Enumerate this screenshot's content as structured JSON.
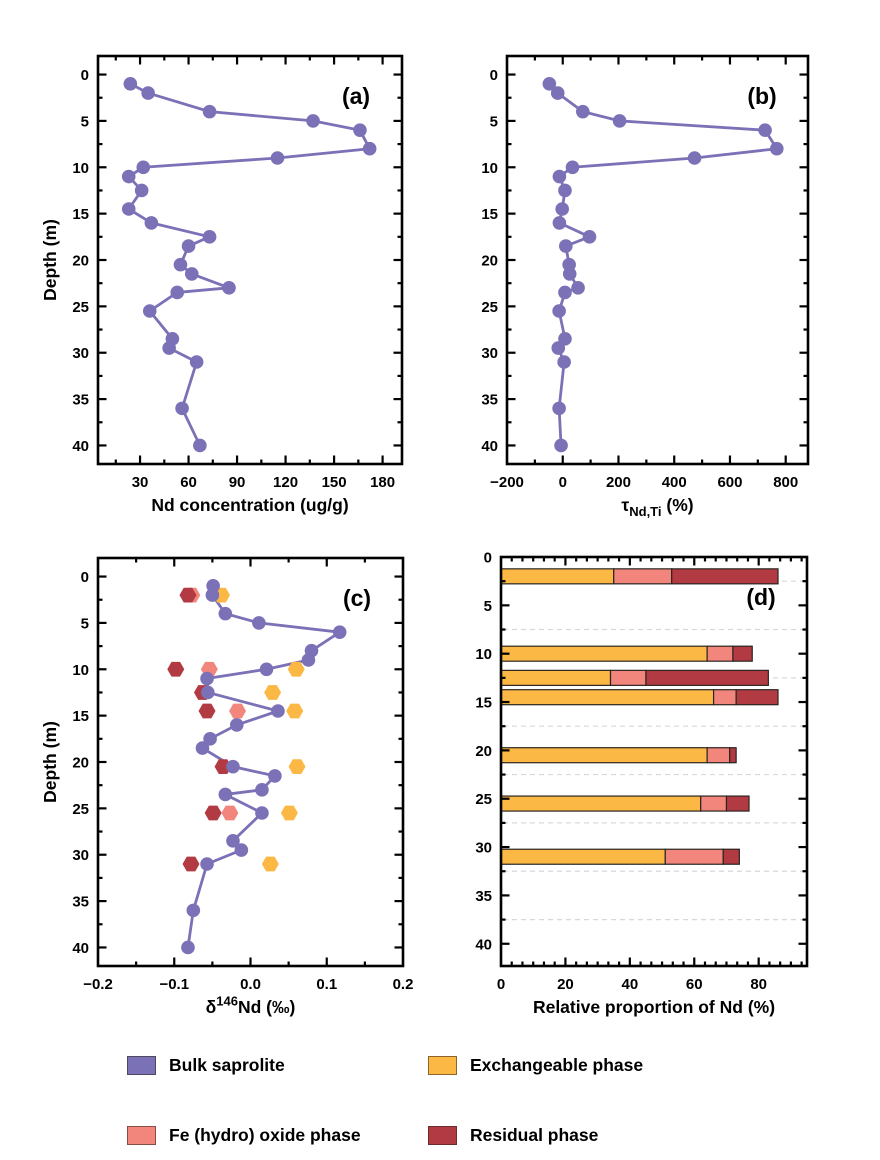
{
  "colors": {
    "bulk_saprolite": "#7B71B6",
    "fe_oxide": "#F2867C",
    "exchangeable": "#FBB845",
    "residual": "#B23B43",
    "axis": "#000000",
    "grid": "#d8d8d8",
    "bar_border": "#2a2520"
  },
  "legend": {
    "items": [
      {
        "key": "bulk_saprolite",
        "label": "Bulk saprolite"
      },
      {
        "key": "fe_oxide",
        "label": "Fe (hydro) oxide phase"
      },
      {
        "key": "exchangeable",
        "label": "Exchangeable phase"
      },
      {
        "key": "residual",
        "label": "Residual phase"
      }
    ]
  },
  "chart_data": [
    {
      "id": "a",
      "label": "(a)",
      "type": "line",
      "x_title_parts": [
        {
          "t": "Nd concentration (ug/g)"
        }
      ],
      "y_title": "Depth (m)",
      "xlim": [
        4,
        192
      ],
      "xticks": [
        30,
        60,
        90,
        120,
        150,
        180
      ],
      "xtick_labels": [
        "30",
        "60",
        "90",
        "120",
        "150",
        "180"
      ],
      "xminor_step": 15,
      "ylim": [
        -2,
        42
      ],
      "yticks": [
        0,
        5,
        10,
        15,
        20,
        25,
        30,
        35,
        40
      ],
      "yminor_step": 2.5,
      "series": [
        {
          "name": "Bulk saprolite",
          "color_key": "bulk_saprolite",
          "marker": "circle",
          "line": true,
          "depth": [
            1,
            2,
            4,
            5,
            6,
            8,
            9,
            10,
            11,
            12.5,
            14.5,
            16,
            17.5,
            18.5,
            20.5,
            21.5,
            23,
            23.5,
            25.5,
            28.5,
            29.5,
            31,
            36,
            40
          ],
          "values": [
            24,
            35,
            73,
            137,
            166,
            172,
            115,
            32,
            23,
            31,
            23,
            37,
            73,
            60,
            55,
            62,
            85,
            53,
            36,
            50,
            48,
            65,
            56,
            67
          ]
        }
      ]
    },
    {
      "id": "b",
      "label": "(b)",
      "type": "line",
      "x_title_parts": [
        {
          "t": "τ"
        },
        {
          "t": "Nd,Ti",
          "pos": "sub"
        },
        {
          "t": " (%)"
        }
      ],
      "y_title": "",
      "xlim": [
        -200,
        880
      ],
      "xticks": [
        -200,
        0,
        200,
        400,
        600,
        800
      ],
      "xtick_labels": [
        "−200",
        "0",
        "200",
        "400",
        "600",
        "800"
      ],
      "xminor_step": 100,
      "ylim": [
        -2,
        42
      ],
      "yticks": [
        0,
        5,
        10,
        15,
        20,
        25,
        30,
        35,
        40
      ],
      "yminor_step": 2.5,
      "series": [
        {
          "name": "Bulk saprolite",
          "color_key": "bulk_saprolite",
          "marker": "circle",
          "line": true,
          "depth": [
            1,
            2,
            4,
            5,
            6,
            8,
            9,
            10,
            11,
            12.5,
            14.5,
            16,
            17.5,
            18.5,
            20.5,
            21.5,
            23,
            23.5,
            25.5,
            28.5,
            29.5,
            31,
            36,
            40
          ],
          "values": [
            -48,
            -18,
            72,
            204,
            726,
            768,
            473,
            35,
            -12,
            8,
            -2,
            -12,
            96,
            11,
            23,
            25,
            55,
            8,
            -13,
            8,
            -16,
            5,
            -13,
            -6
          ]
        }
      ]
    },
    {
      "id": "c",
      "label": "(c)",
      "type": "line",
      "x_title_parts": [
        {
          "t": "δ"
        },
        {
          "t": "146",
          "pos": "sup"
        },
        {
          "t": "Nd (‰)"
        }
      ],
      "y_title": "Depth (m)",
      "xlim": [
        -0.2,
        0.2
      ],
      "xticks": [
        -0.2,
        -0.1,
        0,
        0.1,
        0.2
      ],
      "xtick_labels": [
        "−0.2",
        "−0.1",
        "0.0",
        "0.1",
        "0.2"
      ],
      "xminor_step": 0.05,
      "ylim": [
        -2,
        42
      ],
      "yticks": [
        0,
        5,
        10,
        15,
        20,
        25,
        30,
        35,
        40
      ],
      "yminor_step": 2.5,
      "series": [
        {
          "name": "Bulk saprolite",
          "color_key": "bulk_saprolite",
          "marker": "circle",
          "line": true,
          "depth": [
            1,
            2,
            4,
            5,
            6,
            8,
            9,
            10,
            11,
            12.5,
            14.5,
            16,
            17.5,
            18.5,
            20.5,
            21.5,
            23,
            23.5,
            25.5,
            28.5,
            29.5,
            31,
            36,
            40
          ],
          "values": [
            -0.049,
            -0.05,
            -0.033,
            0.011,
            0.117,
            0.08,
            0.076,
            0.021,
            -0.057,
            -0.056,
            0.036,
            -0.018,
            -0.053,
            -0.063,
            -0.023,
            0.032,
            0.015,
            -0.033,
            0.015,
            -0.023,
            -0.012,
            -0.057,
            -0.075,
            -0.082
          ]
        },
        {
          "name": "Exchangeable phase",
          "color_key": "exchangeable",
          "marker": "hexagon",
          "line": false,
          "depth": [
            2,
            10,
            12.5,
            14.5,
            20.5,
            25.5,
            31
          ],
          "values": [
            -0.038,
            0.06,
            0.029,
            0.058,
            0.061,
            0.051,
            0.026
          ]
        },
        {
          "name": "Fe (hydro) oxide phase",
          "color_key": "fe_oxide",
          "marker": "hexagon",
          "line": false,
          "depth": [
            2,
            10,
            14.5,
            25.5
          ],
          "values": [
            -0.077,
            -0.054,
            -0.017,
            -0.027
          ]
        },
        {
          "name": "Residual phase",
          "color_key": "residual",
          "marker": "hexagon",
          "line": false,
          "depth": [
            2,
            10,
            12.5,
            14.5,
            20.5,
            25.5,
            31
          ],
          "values": [
            -0.082,
            -0.098,
            -0.063,
            -0.057,
            -0.036,
            -0.049,
            -0.078
          ]
        }
      ]
    },
    {
      "id": "d",
      "label": "(d)",
      "type": "stacked_bar_h",
      "x_title_parts": [
        {
          "t": "Relative proportion of Nd (%)"
        }
      ],
      "y_title": "",
      "xlim": [
        0,
        95
      ],
      "xticks": [
        0,
        20,
        40,
        60,
        80
      ],
      "xtick_labels": [
        "0",
        "20",
        "40",
        "60",
        "80"
      ],
      "xminor_step": 3.3333,
      "ylim": [
        0,
        42.3
      ],
      "yticks": [
        0,
        5,
        10,
        15,
        20,
        25,
        30,
        35,
        40
      ],
      "yminor_step": 2.5,
      "grid_depths": [
        2.5,
        7.5,
        12.5,
        17.5,
        22.5,
        27.5,
        32.5,
        37.5
      ],
      "bar_depths": [
        2,
        10,
        12.5,
        14.5,
        20.5,
        25.5,
        31
      ],
      "series": [
        {
          "name": "Exchangeable phase",
          "color_key": "exchangeable",
          "values": [
            35,
            64,
            34,
            66,
            64,
            62,
            51
          ]
        },
        {
          "name": "Fe (hydro) oxide phase",
          "color_key": "fe_oxide",
          "values": [
            18,
            8,
            11,
            7,
            7,
            8,
            18
          ]
        },
        {
          "name": "Residual phase",
          "color_key": "residual",
          "values": [
            33,
            6,
            38,
            13,
            2,
            7,
            5
          ]
        }
      ]
    }
  ]
}
